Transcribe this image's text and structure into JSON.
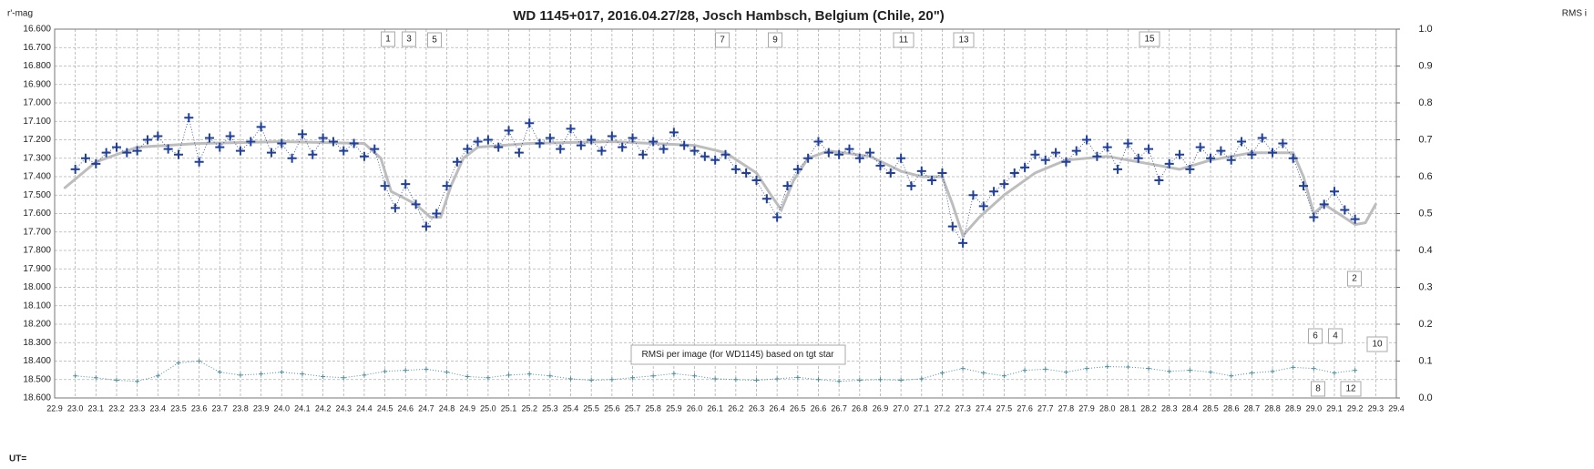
{
  "chart_data": {
    "type": "scatter",
    "title": "WD 1145+017,  2016.04.27/28,  Josch  Hambsch,  Belgium  (Chile, 20\")",
    "y_label": "r'-mag",
    "y2_label": "RMS i",
    "x_label": "UT=",
    "note": "RMSi per image (for WD1145) based on tgt star",
    "annotations": [
      "1",
      "3",
      "5",
      "7",
      "9",
      "11",
      "13",
      "15",
      "2",
      "6",
      "4",
      "10",
      "8",
      "12"
    ],
    "grid": true,
    "xlim": [
      22.9,
      29.4
    ],
    "ylim": [
      18.6,
      16.6
    ],
    "y2lim": [
      0,
      1
    ],
    "xticks": [
      22.9,
      {
        "value": 23,
        "label": "23.0"
      },
      23.1,
      23.2,
      23.3,
      23.4,
      23.5,
      23.6,
      23.7,
      23.8,
      23.9,
      {
        "value": 24,
        "label": "24.0"
      },
      24.1,
      24.2,
      24.3,
      24.4,
      24.5,
      24.6,
      24.7,
      24.8,
      24.9,
      {
        "value": 25,
        "label": "25.0"
      },
      25.1,
      25.2,
      25.3,
      25.4,
      25.5,
      25.6,
      25.7,
      25.8,
      25.9,
      {
        "value": 26,
        "label": "26.0"
      },
      26.1,
      26.2,
      26.3,
      26.4,
      26.5,
      26.6,
      26.7,
      26.8,
      26.9,
      {
        "value": 27,
        "label": "27.0"
      },
      27.1,
      27.2,
      27.3,
      27.4,
      27.5,
      27.6,
      27.7,
      27.8,
      27.9,
      {
        "value": 28,
        "label": "28.0"
      },
      28.1,
      28.2,
      28.3,
      28.4,
      28.5,
      28.6,
      28.7,
      28.8,
      28.9,
      {
        "value": 29,
        "label": "29.0"
      },
      29.1,
      29.2,
      29.3,
      29.4
    ],
    "yticks": [
      {
        "value": 16.6,
        "label": "16.600"
      },
      {
        "value": 16.7,
        "label": "16.700"
      },
      {
        "value": 16.8,
        "label": "16.800"
      },
      {
        "value": 16.9,
        "label": "16.900"
      },
      {
        "value": 17.0,
        "label": "17.000"
      },
      {
        "value": 17.1,
        "label": "17.100"
      },
      {
        "value": 17.2,
        "label": "17.200"
      },
      {
        "value": 17.3,
        "label": "17.300"
      },
      {
        "value": 17.4,
        "label": "17.400"
      },
      {
        "value": 17.5,
        "label": "17.500"
      },
      {
        "value": 17.6,
        "label": "17.600"
      },
      {
        "value": 17.7,
        "label": "17.700"
      },
      {
        "value": 17.8,
        "label": "17.800"
      },
      {
        "value": 17.9,
        "label": "17.900"
      },
      {
        "value": 18.0,
        "label": "18.000"
      },
      {
        "value": 18.1,
        "label": "18.100"
      },
      {
        "value": 18.2,
        "label": "18.200"
      },
      {
        "value": 18.3,
        "label": "18.300"
      },
      {
        "value": 18.4,
        "label": "18.400"
      },
      {
        "value": 18.5,
        "label": "18.500"
      },
      {
        "value": 18.6,
        "label": "18.600"
      }
    ],
    "y2ticks": [
      {
        "value": 0,
        "label": "0.0"
      },
      0.1,
      0.2,
      0.3,
      0.4,
      0.5,
      0.6,
      0.7,
      0.8,
      0.9,
      {
        "value": 1,
        "label": "1.0"
      }
    ],
    "series": [
      {
        "kind": "points",
        "color": "#1f3f9a",
        "x": [
          23.0,
          23.05,
          23.1,
          23.15,
          23.2,
          23.25,
          23.3,
          23.35,
          23.4,
          23.45,
          23.5,
          23.55,
          23.6,
          23.65,
          23.7,
          23.75,
          23.8,
          23.85,
          23.9,
          23.95,
          24.0,
          24.05,
          24.1,
          24.15,
          24.2,
          24.25,
          24.3,
          24.35,
          24.4,
          24.45,
          24.5,
          24.55,
          24.6,
          24.65,
          24.7,
          24.75,
          24.8,
          24.85,
          24.9,
          24.95,
          25.0,
          25.05,
          25.1,
          25.15,
          25.2,
          25.25,
          25.3,
          25.35,
          25.4,
          25.45,
          25.5,
          25.55,
          25.6,
          25.65,
          25.7,
          25.75,
          25.8,
          25.85,
          25.9,
          25.95,
          26.0,
          26.05,
          26.1,
          26.15,
          26.2,
          26.25,
          26.3,
          26.35,
          26.4,
          26.45,
          26.5,
          26.55,
          26.6,
          26.65,
          26.7,
          26.75,
          26.8,
          26.85,
          26.9,
          26.95,
          27.0,
          27.05,
          27.1,
          27.15,
          27.2,
          27.25,
          27.3,
          27.35,
          27.4,
          27.45,
          27.5,
          27.55,
          27.6,
          27.65,
          27.7,
          27.75,
          27.8,
          27.85,
          27.9,
          27.95,
          28.0,
          28.05,
          28.1,
          28.15,
          28.2,
          28.25,
          28.3,
          28.35,
          28.4,
          28.45,
          28.5,
          28.55,
          28.6,
          28.65,
          28.7,
          28.75,
          28.8,
          28.85,
          28.9,
          28.95,
          29.0,
          29.05,
          29.1,
          29.15,
          29.2
        ],
        "values": [
          17.36,
          17.3,
          17.33,
          17.27,
          17.24,
          17.27,
          17.26,
          17.2,
          17.18,
          17.25,
          17.28,
          17.08,
          17.32,
          17.19,
          17.24,
          17.18,
          17.26,
          17.21,
          17.13,
          17.27,
          17.22,
          17.3,
          17.17,
          17.28,
          17.19,
          17.21,
          17.26,
          17.22,
          17.29,
          17.25,
          17.45,
          17.57,
          17.44,
          17.55,
          17.67,
          17.6,
          17.45,
          17.32,
          17.25,
          17.21,
          17.2,
          17.24,
          17.15,
          17.27,
          17.11,
          17.22,
          17.19,
          17.25,
          17.14,
          17.23,
          17.2,
          17.26,
          17.18,
          17.24,
          17.19,
          17.28,
          17.21,
          17.25,
          17.16,
          17.23,
          17.26,
          17.29,
          17.31,
          17.28,
          17.36,
          17.38,
          17.42,
          17.52,
          17.62,
          17.45,
          17.36,
          17.3,
          17.21,
          17.27,
          17.28,
          17.25,
          17.3,
          17.27,
          17.34,
          17.38,
          17.3,
          17.45,
          17.37,
          17.42,
          17.38,
          17.67,
          17.76,
          17.5,
          17.56,
          17.48,
          17.44,
          17.38,
          17.35,
          17.28,
          17.31,
          17.27,
          17.32,
          17.26,
          17.2,
          17.29,
          17.24,
          17.36,
          17.22,
          17.3,
          17.25,
          17.42,
          17.33,
          17.28,
          17.36,
          17.24,
          17.3,
          17.26,
          17.31,
          17.21,
          17.28,
          17.19,
          17.27,
          17.22,
          17.3,
          17.45,
          17.62,
          17.55,
          17.48,
          17.58,
          17.63
        ]
      },
      {
        "kind": "line",
        "color": "#bdbdbd",
        "x": [
          22.95,
          23.1,
          23.3,
          23.6,
          24.0,
          24.4,
          24.48,
          24.53,
          24.6,
          24.65,
          24.72,
          24.77,
          24.82,
          24.88,
          24.95,
          25.2,
          25.6,
          26.0,
          26.15,
          26.3,
          26.37,
          26.42,
          26.48,
          26.55,
          26.65,
          26.85,
          27.0,
          27.1,
          27.2,
          27.25,
          27.3,
          27.38,
          27.5,
          27.65,
          27.8,
          28.0,
          28.2,
          28.35,
          28.5,
          28.7,
          28.9,
          28.95,
          29.0,
          29.05,
          29.12,
          29.2,
          29.25,
          29.3
        ],
        "values": [
          17.46,
          17.32,
          17.24,
          17.22,
          17.21,
          17.22,
          17.3,
          17.48,
          17.52,
          17.55,
          17.62,
          17.62,
          17.45,
          17.3,
          17.24,
          17.22,
          17.21,
          17.23,
          17.27,
          17.38,
          17.5,
          17.58,
          17.42,
          17.3,
          17.26,
          17.29,
          17.37,
          17.4,
          17.4,
          17.55,
          17.72,
          17.62,
          17.5,
          17.38,
          17.31,
          17.29,
          17.33,
          17.36,
          17.31,
          17.27,
          17.27,
          17.4,
          17.6,
          17.55,
          17.6,
          17.66,
          17.65,
          17.55
        ]
      },
      {
        "kind": "rms",
        "axis": "y2",
        "color": "#4f8fa0",
        "x": [
          23.0,
          23.1,
          23.2,
          23.3,
          23.4,
          23.5,
          23.6,
          23.7,
          23.8,
          23.9,
          24.0,
          24.1,
          24.2,
          24.3,
          24.4,
          24.5,
          24.6,
          24.7,
          24.8,
          24.9,
          25.0,
          25.1,
          25.2,
          25.3,
          25.4,
          25.5,
          25.6,
          25.7,
          25.8,
          25.9,
          26.0,
          26.1,
          26.2,
          26.3,
          26.4,
          26.5,
          26.6,
          26.7,
          26.8,
          26.9,
          27.0,
          27.1,
          27.2,
          27.3,
          27.4,
          27.5,
          27.6,
          27.7,
          27.8,
          27.9,
          28.0,
          28.1,
          28.2,
          28.3,
          28.4,
          28.5,
          28.6,
          28.7,
          28.8,
          28.9,
          29.0,
          29.1,
          29.2
        ],
        "values": [
          0.06,
          0.055,
          0.048,
          0.045,
          0.06,
          0.095,
          0.1,
          0.07,
          0.062,
          0.065,
          0.07,
          0.065,
          0.058,
          0.055,
          0.062,
          0.072,
          0.075,
          0.078,
          0.07,
          0.058,
          0.055,
          0.062,
          0.065,
          0.06,
          0.052,
          0.048,
          0.05,
          0.055,
          0.06,
          0.066,
          0.06,
          0.052,
          0.05,
          0.048,
          0.052,
          0.056,
          0.05,
          0.045,
          0.048,
          0.05,
          0.048,
          0.052,
          0.068,
          0.08,
          0.068,
          0.06,
          0.075,
          0.078,
          0.07,
          0.08,
          0.085,
          0.084,
          0.08,
          0.072,
          0.075,
          0.07,
          0.06,
          0.068,
          0.072,
          0.083,
          0.08,
          0.068,
          0.075
        ]
      }
    ]
  }
}
